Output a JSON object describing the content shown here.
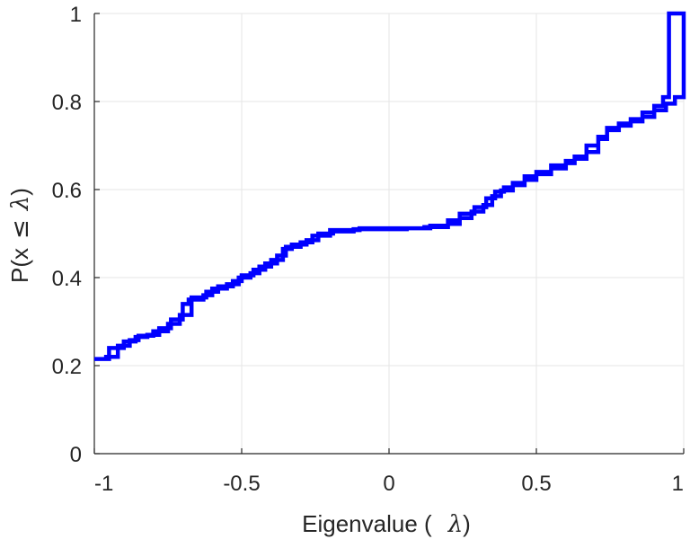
{
  "chart_data": {
    "type": "line",
    "subtype": "empirical-cdf-staircase",
    "xlabel": {
      "prefix": "Eigenvalue (",
      "symbol": "λ",
      "suffix": ")"
    },
    "ylabel": {
      "prefix": "P(x",
      "relation": "≤",
      "symbol": "λ",
      "suffix": ")"
    },
    "xlim": [
      -1,
      1
    ],
    "ylim": [
      0,
      1
    ],
    "xticks": [
      -1,
      -0.5,
      0,
      0.5,
      1
    ],
    "xtick_labels": [
      "-1",
      "-0.5",
      "0",
      "0.5",
      "1"
    ],
    "yticks": [
      0,
      0.2,
      0.4,
      0.6,
      0.8,
      1
    ],
    "ytick_labels": [
      "0",
      "0.2",
      "0.4",
      "0.6",
      "0.8",
      "1"
    ],
    "grid": true,
    "series": [
      {
        "color": "#0000ff",
        "points": [
          [
            -1.0,
            0.215
          ],
          [
            -0.95,
            0.215
          ],
          [
            -0.95,
            0.24
          ],
          [
            -0.9,
            0.24
          ],
          [
            -0.9,
            0.255
          ],
          [
            -0.86,
            0.255
          ],
          [
            -0.86,
            0.265
          ],
          [
            -0.82,
            0.265
          ],
          [
            -0.82,
            0.27
          ],
          [
            -0.78,
            0.27
          ],
          [
            -0.78,
            0.285
          ],
          [
            -0.74,
            0.285
          ],
          [
            -0.74,
            0.305
          ],
          [
            -0.7,
            0.305
          ],
          [
            -0.7,
            0.34
          ],
          [
            -0.68,
            0.34
          ],
          [
            -0.68,
            0.35
          ],
          [
            -0.63,
            0.35
          ],
          [
            -0.63,
            0.36
          ],
          [
            -0.6,
            0.36
          ],
          [
            -0.6,
            0.375
          ],
          [
            -0.55,
            0.375
          ],
          [
            -0.55,
            0.385
          ],
          [
            -0.51,
            0.385
          ],
          [
            -0.51,
            0.4
          ],
          [
            -0.47,
            0.4
          ],
          [
            -0.47,
            0.41
          ],
          [
            -0.44,
            0.41
          ],
          [
            -0.44,
            0.425
          ],
          [
            -0.4,
            0.425
          ],
          [
            -0.4,
            0.44
          ],
          [
            -0.36,
            0.44
          ],
          [
            -0.36,
            0.465
          ],
          [
            -0.33,
            0.465
          ],
          [
            -0.33,
            0.475
          ],
          [
            -0.28,
            0.475
          ],
          [
            -0.28,
            0.485
          ],
          [
            -0.24,
            0.485
          ],
          [
            -0.24,
            0.5
          ],
          [
            -0.19,
            0.5
          ],
          [
            -0.19,
            0.505
          ],
          [
            -0.12,
            0.505
          ],
          [
            -0.12,
            0.51
          ],
          [
            0.06,
            0.51
          ],
          [
            0.06,
            0.512
          ],
          [
            0.14,
            0.512
          ],
          [
            0.14,
            0.518
          ],
          [
            0.2,
            0.518
          ],
          [
            0.2,
            0.53
          ],
          [
            0.24,
            0.53
          ],
          [
            0.24,
            0.545
          ],
          [
            0.29,
            0.545
          ],
          [
            0.29,
            0.56
          ],
          [
            0.33,
            0.56
          ],
          [
            0.33,
            0.58
          ],
          [
            0.36,
            0.58
          ],
          [
            0.36,
            0.595
          ],
          [
            0.39,
            0.595
          ],
          [
            0.39,
            0.605
          ],
          [
            0.42,
            0.605
          ],
          [
            0.42,
            0.615
          ],
          [
            0.46,
            0.615
          ],
          [
            0.46,
            0.63
          ],
          [
            0.5,
            0.63
          ],
          [
            0.5,
            0.64
          ],
          [
            0.55,
            0.64
          ],
          [
            0.55,
            0.655
          ],
          [
            0.6,
            0.655
          ],
          [
            0.6,
            0.665
          ],
          [
            0.63,
            0.665
          ],
          [
            0.63,
            0.675
          ],
          [
            0.67,
            0.675
          ],
          [
            0.67,
            0.7
          ],
          [
            0.71,
            0.7
          ],
          [
            0.71,
            0.72
          ],
          [
            0.74,
            0.72
          ],
          [
            0.74,
            0.74
          ],
          [
            0.78,
            0.74
          ],
          [
            0.78,
            0.75
          ],
          [
            0.82,
            0.75
          ],
          [
            0.82,
            0.76
          ],
          [
            0.86,
            0.76
          ],
          [
            0.86,
            0.775
          ],
          [
            0.9,
            0.775
          ],
          [
            0.9,
            0.79
          ],
          [
            0.93,
            0.79
          ],
          [
            0.93,
            0.81
          ],
          [
            0.95,
            0.81
          ],
          [
            0.95,
            1.0
          ],
          [
            1.0,
            1.0
          ],
          [
            1.0,
            0.81
          ],
          [
            0.97,
            0.81
          ],
          [
            0.97,
            0.795
          ],
          [
            0.94,
            0.795
          ],
          [
            0.94,
            0.78
          ],
          [
            0.9,
            0.78
          ],
          [
            0.9,
            0.765
          ],
          [
            0.86,
            0.765
          ],
          [
            0.86,
            0.755
          ],
          [
            0.82,
            0.755
          ],
          [
            0.82,
            0.745
          ],
          [
            0.78,
            0.745
          ],
          [
            0.78,
            0.735
          ],
          [
            0.74,
            0.735
          ],
          [
            0.74,
            0.715
          ],
          [
            0.71,
            0.715
          ],
          [
            0.71,
            0.685
          ],
          [
            0.67,
            0.685
          ],
          [
            0.67,
            0.67
          ],
          [
            0.63,
            0.67
          ],
          [
            0.63,
            0.66
          ],
          [
            0.6,
            0.66
          ],
          [
            0.6,
            0.648
          ],
          [
            0.55,
            0.648
          ],
          [
            0.55,
            0.635
          ],
          [
            0.5,
            0.635
          ],
          [
            0.5,
            0.622
          ],
          [
            0.46,
            0.622
          ],
          [
            0.46,
            0.61
          ],
          [
            0.42,
            0.61
          ],
          [
            0.42,
            0.598
          ],
          [
            0.38,
            0.598
          ],
          [
            0.38,
            0.585
          ],
          [
            0.35,
            0.585
          ],
          [
            0.35,
            0.565
          ],
          [
            0.32,
            0.565
          ],
          [
            0.32,
            0.55
          ],
          [
            0.28,
            0.55
          ],
          [
            0.28,
            0.535
          ],
          [
            0.24,
            0.535
          ],
          [
            0.24,
            0.522
          ],
          [
            0.2,
            0.522
          ],
          [
            0.2,
            0.515
          ],
          [
            0.12,
            0.515
          ],
          [
            0.12,
            0.512
          ],
          [
            -0.1,
            0.512
          ],
          [
            -0.1,
            0.508
          ],
          [
            -0.2,
            0.508
          ],
          [
            -0.2,
            0.495
          ],
          [
            -0.26,
            0.495
          ],
          [
            -0.26,
            0.48
          ],
          [
            -0.3,
            0.48
          ],
          [
            -0.3,
            0.47
          ],
          [
            -0.35,
            0.47
          ],
          [
            -0.35,
            0.45
          ],
          [
            -0.38,
            0.45
          ],
          [
            -0.38,
            0.432
          ],
          [
            -0.42,
            0.432
          ],
          [
            -0.42,
            0.418
          ],
          [
            -0.46,
            0.418
          ],
          [
            -0.46,
            0.405
          ],
          [
            -0.5,
            0.405
          ],
          [
            -0.5,
            0.392
          ],
          [
            -0.53,
            0.392
          ],
          [
            -0.53,
            0.38
          ],
          [
            -0.58,
            0.38
          ],
          [
            -0.58,
            0.368
          ],
          [
            -0.62,
            0.368
          ],
          [
            -0.62,
            0.355
          ],
          [
            -0.67,
            0.355
          ],
          [
            -0.67,
            0.315
          ],
          [
            -0.71,
            0.315
          ],
          [
            -0.71,
            0.295
          ],
          [
            -0.75,
            0.295
          ],
          [
            -0.75,
            0.278
          ],
          [
            -0.8,
            0.278
          ],
          [
            -0.8,
            0.268
          ],
          [
            -0.85,
            0.268
          ],
          [
            -0.85,
            0.258
          ],
          [
            -0.88,
            0.258
          ],
          [
            -0.88,
            0.245
          ],
          [
            -0.92,
            0.245
          ],
          [
            -0.92,
            0.22
          ],
          [
            -0.96,
            0.22
          ],
          [
            -0.96,
            0.215
          ],
          [
            -1.0,
            0.215
          ]
        ]
      }
    ]
  }
}
